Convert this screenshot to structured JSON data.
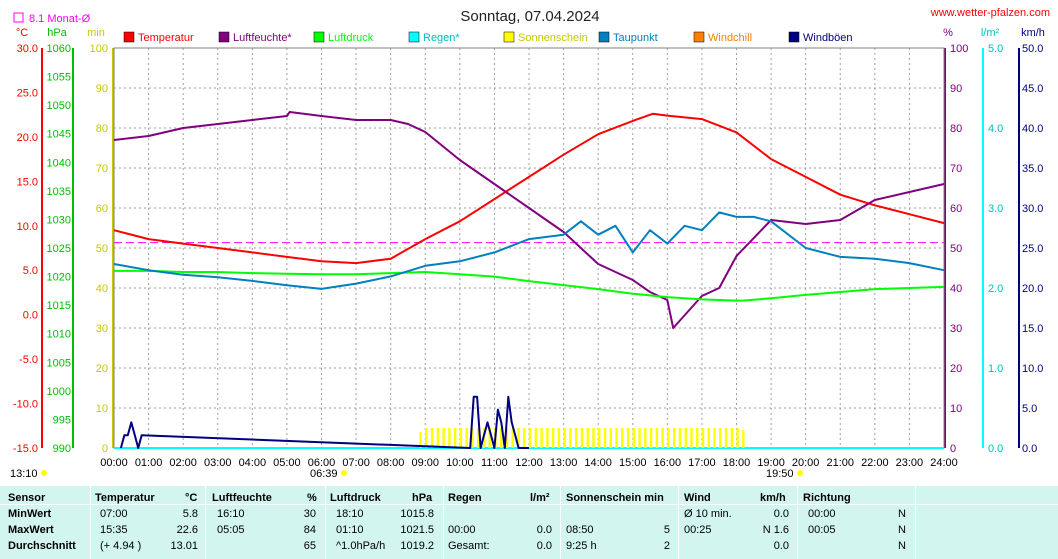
{
  "page": {
    "title": "Sonntag, 07.04.2024",
    "site": "www.wetter-pfalzen.com",
    "monthly_avg_label": "8.1 Monat-Ø",
    "sunrise": "06:39",
    "sunset": "19:50",
    "left_time": "13:10"
  },
  "chart_data": {
    "type": "line",
    "title": "Sonntag, 07.04.2024",
    "x_labels": [
      "00:00",
      "01:00",
      "02:00",
      "03:00",
      "04:00",
      "05:00",
      "06:00",
      "07:00",
      "08:00",
      "09:00",
      "10:00",
      "11:00",
      "12:00",
      "13:00",
      "14:00",
      "15:00",
      "16:00",
      "17:00",
      "18:00",
      "19:00",
      "20:00",
      "21:00",
      "22:00",
      "23:00",
      "24:00"
    ],
    "xlim": [
      0,
      24
    ],
    "grid": true,
    "legend_position": "top",
    "axes": {
      "temperature": {
        "unit": "°C",
        "range": [
          -15,
          30
        ],
        "ticks": [
          "30.0",
          "25.0",
          "20.0",
          "15.0",
          "10.0",
          "5.0",
          "0.0",
          "-5.0",
          "-10.0",
          "-15.0"
        ]
      },
      "pressure": {
        "unit": "hPa",
        "range": [
          990,
          1060
        ],
        "ticks": [
          "1060",
          "1055",
          "1050",
          "1045",
          "1040",
          "1035",
          "1030",
          "1025",
          "1020",
          "1015",
          "1010",
          "1005",
          "1000",
          "995",
          "990"
        ]
      },
      "minutes": {
        "unit": "min",
        "range": [
          0,
          100
        ],
        "ticks": [
          "100",
          "90",
          "80",
          "70",
          "60",
          "50",
          "40",
          "30",
          "20",
          "10",
          "0"
        ]
      },
      "humidity": {
        "unit": "%",
        "range": [
          0,
          100
        ],
        "ticks": [
          "100",
          "90",
          "80",
          "70",
          "60",
          "50",
          "40",
          "30",
          "20",
          "10",
          "0"
        ]
      },
      "rain": {
        "unit": "l/m²",
        "range": [
          0,
          5
        ],
        "ticks": [
          "5.0",
          "4.0",
          "3.0",
          "2.0",
          "1.0",
          "0.0"
        ]
      },
      "wind": {
        "unit": "km/h",
        "range": [
          0,
          50
        ],
        "ticks": [
          "50.0",
          "45.0",
          "40.0",
          "35.0",
          "30.0",
          "25.0",
          "20.0",
          "15.0",
          "10.0",
          "5.0",
          "0.0"
        ]
      }
    },
    "monthly_avg_temperature": 8.1,
    "series": [
      {
        "name": "Temperatur",
        "color": "#ff0000",
        "axis": "temperature",
        "x": [
          0,
          1,
          2,
          3,
          4,
          5,
          6,
          7,
          8,
          9,
          10,
          11,
          12,
          13,
          14,
          15,
          15.58,
          16,
          17,
          18,
          19,
          20,
          21,
          22,
          23,
          24
        ],
        "y": [
          9.5,
          8.5,
          8.0,
          7.5,
          7.0,
          6.5,
          6.0,
          5.8,
          6.3,
          8.5,
          10.5,
          13.0,
          15.5,
          18.0,
          20.3,
          21.8,
          22.6,
          22.4,
          22.0,
          20.5,
          17.5,
          15.5,
          13.5,
          12.3,
          11.3,
          10.3
        ]
      },
      {
        "name": "Luftfeuchte*",
        "color": "#800080",
        "axis": "humidity",
        "x": [
          0,
          1,
          2,
          3,
          4,
          5,
          5.08,
          6,
          7,
          8,
          8.5,
          9,
          10,
          11,
          12,
          13,
          13.5,
          14,
          15,
          15.5,
          16,
          16.17,
          17,
          17.5,
          18,
          19,
          20,
          21,
          22,
          23,
          24
        ],
        "y": [
          77,
          78,
          80,
          81,
          82,
          83,
          84,
          83,
          82,
          82,
          81,
          79,
          72,
          66,
          60,
          54,
          50,
          46,
          42,
          39,
          37,
          30,
          38,
          40,
          48,
          57,
          56,
          57,
          62,
          64,
          66
        ]
      },
      {
        "name": "Luftdruck",
        "color": "#00ff00",
        "axis": "pressure",
        "x": [
          0,
          1,
          2,
          3,
          4,
          5,
          6,
          7,
          8,
          9,
          10,
          11,
          12,
          13,
          14,
          15,
          16,
          17,
          18,
          18.17,
          19,
          20,
          21,
          22,
          23,
          24
        ],
        "y": [
          1021.0,
          1021.0,
          1020.8,
          1020.8,
          1020.6,
          1020.5,
          1020.4,
          1020.4,
          1020.6,
          1020.8,
          1020.4,
          1020.0,
          1019.2,
          1018.5,
          1017.8,
          1017.0,
          1016.4,
          1016.0,
          1015.8,
          1015.8,
          1016.2,
          1016.8,
          1017.3,
          1017.8,
          1018.0,
          1018.2
        ]
      },
      {
        "name": "Regen*",
        "color": "#00ffff",
        "axis": "rain",
        "x": [
          0,
          24
        ],
        "y": [
          0.0,
          0.0
        ]
      },
      {
        "name": "Sonnenschein",
        "color": "#ffff00",
        "axis": "minutes",
        "x": [
          8.83,
          9,
          10,
          11,
          12,
          13,
          14,
          15,
          16,
          17,
          18,
          18.3
        ],
        "y": [
          4,
          5,
          5,
          5,
          5,
          5,
          5,
          5,
          5,
          5,
          5,
          4
        ]
      },
      {
        "name": "Taupunkt",
        "color": "#0080c0",
        "axis": "temperature",
        "x": [
          0,
          1,
          2,
          3,
          4,
          5,
          6,
          7,
          8,
          9,
          10,
          11,
          12,
          13,
          13.5,
          14,
          14.5,
          15,
          15.5,
          16,
          16.5,
          17,
          17.5,
          18,
          18.5,
          19,
          20,
          21,
          22,
          23,
          24
        ],
        "y": [
          5.7,
          5.0,
          4.5,
          4.2,
          3.8,
          3.3,
          2.9,
          3.5,
          4.3,
          5.5,
          6.0,
          7.0,
          8.5,
          9.0,
          10.5,
          9.0,
          10.0,
          7.0,
          9.5,
          8.0,
          10.0,
          9.5,
          11.5,
          11.0,
          11.0,
          10.5,
          7.5,
          6.5,
          6.3,
          5.8,
          5.0
        ]
      },
      {
        "name": "Windchill",
        "color": "#ff8000",
        "axis": "temperature",
        "x": [],
        "y": []
      },
      {
        "name": "Windböen",
        "color": "#000080",
        "axis": "wind",
        "x": [
          0.2,
          0.3,
          0.4,
          0.5,
          0.6,
          0.7,
          0.8,
          10.3,
          10.4,
          10.5,
          10.6,
          10.7,
          10.8,
          10.9,
          11.0,
          11.1,
          11.2,
          11.3,
          11.4,
          11.5,
          11.6,
          11.7,
          11.8,
          12.0
        ],
        "y": [
          0,
          1.6,
          1.6,
          3.2,
          1.6,
          0,
          1.6,
          0,
          6.4,
          6.4,
          0,
          1.6,
          3.2,
          1.6,
          0,
          4.8,
          3.2,
          0,
          6.4,
          3.2,
          1.6,
          0,
          0,
          0
        ]
      }
    ]
  },
  "stats": {
    "headers": {
      "sensor": "Sensor",
      "temp": "Temperatur",
      "temp_unit": "°C",
      "hum": "Luftfeuchte",
      "hum_unit": "%",
      "press": "Luftdruck",
      "press_unit": "hPa",
      "rain": "Regen",
      "rain_unit": "l/m²",
      "sun": "Sonnenschein min",
      "wind": "Wind",
      "wind_unit": "km/h",
      "dir": "Richtung"
    },
    "rows": [
      {
        "label": "MinWert",
        "temp_time": "07:00",
        "temp_val": "5.8",
        "hum_time": "16:10",
        "hum_val": "30",
        "press_time": "18:10",
        "press_val": "1015.8",
        "rain_time": "",
        "rain_val": "",
        "sun_time": "",
        "sun_val": "",
        "wind_time": "Ø 10 min.",
        "wind_val": "0.0",
        "dir_time": "00:00",
        "dir_val": "N"
      },
      {
        "label": "MaxWert",
        "temp_time": "15:35",
        "temp_val": "22.6",
        "hum_time": "05:05",
        "hum_val": "84",
        "press_time": "01:10",
        "press_val": "1021.5",
        "rain_time": "00:00",
        "rain_val": "0.0",
        "sun_time": "08:50",
        "sun_val": "5",
        "wind_time": "00:25",
        "wind_val": "N 1.6",
        "dir_time": "00:05",
        "dir_val": "N"
      },
      {
        "label": "Durchschnitt",
        "temp_time": "(+ 4.94 )",
        "temp_val": "13.01",
        "hum_time": "",
        "hum_val": "65",
        "press_time": "^1.0hPa/h",
        "press_val": "1019.2",
        "rain_time": "Gesamt:",
        "rain_val": "0.0",
        "sun_time": "9:25 h",
        "sun_val": "2",
        "wind_time": "",
        "wind_val": "0.0",
        "dir_time": "",
        "dir_val": "N"
      }
    ]
  }
}
